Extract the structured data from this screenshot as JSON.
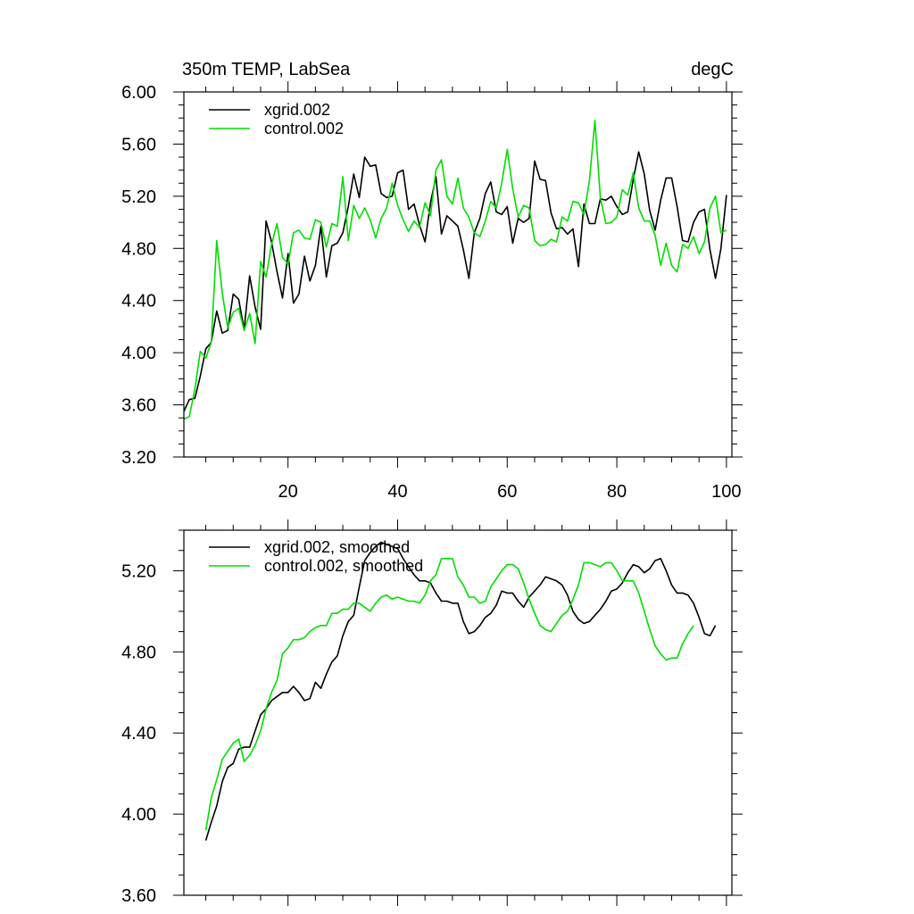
{
  "colors": {
    "xgrid": "#000000",
    "control": "#00dd00",
    "axis": "#000000",
    "background": "#ffffff"
  },
  "chart_data": [
    {
      "type": "line",
      "title": "350m TEMP, LabSea",
      "units": "degC",
      "xlabel": "",
      "ylabel": "",
      "xlim": [
        1,
        101
      ],
      "ylim": [
        3.2,
        6.0
      ],
      "yticks": [
        "6.00",
        "5.60",
        "5.20",
        "4.80",
        "4.40",
        "4.00",
        "3.60",
        "3.20"
      ],
      "xticks": [
        "20",
        "40",
        "60",
        "80",
        "100"
      ],
      "legend_position": "top-left",
      "series": [
        {
          "name": "xgrid.002",
          "color_key": "xgrid",
          "x_start": 1,
          "values": [
            3.55,
            3.64,
            3.65,
            3.82,
            4.03,
            4.08,
            4.32,
            4.15,
            4.17,
            4.45,
            4.41,
            4.18,
            4.59,
            4.35,
            4.18,
            5.01,
            4.85,
            4.62,
            4.42,
            4.76,
            4.38,
            4.45,
            4.74,
            4.55,
            4.67,
            4.97,
            4.58,
            4.82,
            4.84,
            4.92,
            5.12,
            5.37,
            5.19,
            5.5,
            5.43,
            5.44,
            5.22,
            5.19,
            5.2,
            5.38,
            5.4,
            5.1,
            5.14,
            4.98,
            4.85,
            5.15,
            5.35,
            4.91,
            5.05,
            5.01,
            4.97,
            4.79,
            4.57,
            4.92,
            5.03,
            5.22,
            5.31,
            5.08,
            5.06,
            5.12,
            4.84,
            5.03,
            5.0,
            5.03,
            5.47,
            5.33,
            5.32,
            5.07,
            4.95,
            4.96,
            4.91,
            4.95,
            4.66,
            5.14,
            4.99,
            4.99,
            5.18,
            5.17,
            5.2,
            5.12,
            5.06,
            5.08,
            5.33,
            5.54,
            5.37,
            5.09,
            4.94,
            5.17,
            5.34,
            5.34,
            5.12,
            4.86,
            4.85,
            5.0,
            5.08,
            5.1,
            4.79,
            4.57,
            4.8,
            5.21
          ]
        },
        {
          "name": "control.002",
          "color_key": "control",
          "x_start": 1,
          "values": [
            3.49,
            3.51,
            3.72,
            4.01,
            3.96,
            4.08,
            4.86,
            4.46,
            4.19,
            4.31,
            4.34,
            4.17,
            4.3,
            4.07,
            4.7,
            4.58,
            4.83,
            4.99,
            4.73,
            4.68,
            4.92,
            4.94,
            4.88,
            4.87,
            5.02,
            5.0,
            4.81,
            4.99,
            4.97,
            5.35,
            4.86,
            5.13,
            5.03,
            5.11,
            5.02,
            4.88,
            5.03,
            5.11,
            5.3,
            5.13,
            5.02,
            4.93,
            5.01,
            4.96,
            5.15,
            5.05,
            5.4,
            5.48,
            5.2,
            5.14,
            5.34,
            5.11,
            5.04,
            4.92,
            4.89,
            5.01,
            5.16,
            5.11,
            5.3,
            5.56,
            5.26,
            5.04,
            5.13,
            5.11,
            4.86,
            4.82,
            4.83,
            4.87,
            4.85,
            5.04,
            5.01,
            5.16,
            5.15,
            5.06,
            5.32,
            5.78,
            5.19,
            4.99,
            5.0,
            5.04,
            5.25,
            5.21,
            5.38,
            5.11,
            5.01,
            5.01,
            4.9,
            4.67,
            4.84,
            4.67,
            4.62,
            4.83,
            4.8,
            4.89,
            4.76,
            4.85,
            5.11,
            5.2,
            4.92,
            4.94
          ]
        }
      ]
    },
    {
      "type": "line",
      "title": "",
      "xlabel": "",
      "ylabel": "",
      "xlim": [
        1,
        101
      ],
      "ylim": [
        3.6,
        5.4
      ],
      "yticks": [
        "5.20",
        "4.80",
        "4.40",
        "4.00",
        "3.60"
      ],
      "legend_position": "top-left",
      "series": [
        {
          "name": "xgrid.002, smoothed",
          "color_key": "xgrid",
          "x_start": 5,
          "values": [
            3.87,
            3.96,
            4.04,
            4.16,
            4.23,
            4.25,
            4.32,
            4.33,
            4.33,
            4.41,
            4.49,
            4.52,
            4.56,
            4.58,
            4.6,
            4.6,
            4.63,
            4.6,
            4.56,
            4.57,
            4.65,
            4.62,
            4.69,
            4.75,
            4.78,
            4.88,
            4.95,
            4.98,
            5.12,
            5.25,
            5.29,
            5.32,
            5.34,
            5.33,
            5.32,
            5.31,
            5.26,
            5.22,
            5.18,
            5.15,
            5.15,
            5.14,
            5.09,
            5.05,
            5.05,
            5.04,
            5.04,
            4.95,
            4.89,
            4.9,
            4.93,
            4.97,
            4.99,
            5.03,
            5.1,
            5.09,
            5.09,
            5.05,
            5.02,
            5.07,
            5.1,
            5.13,
            5.17,
            5.16,
            5.15,
            5.13,
            5.08,
            5.0,
            4.96,
            4.94,
            4.95,
            4.98,
            5.01,
            5.05,
            5.1,
            5.11,
            5.14,
            5.19,
            5.23,
            5.22,
            5.19,
            5.21,
            5.25,
            5.26,
            5.2,
            5.13,
            5.09,
            5.09,
            5.08,
            5.04,
            4.97,
            4.89,
            4.88,
            4.93
          ]
        },
        {
          "name": "control.002, smoothed",
          "color_key": "control",
          "x_start": 5,
          "values": [
            3.92,
            4.08,
            4.17,
            4.27,
            4.31,
            4.35,
            4.37,
            4.26,
            4.29,
            4.34,
            4.41,
            4.52,
            4.6,
            4.66,
            4.79,
            4.82,
            4.86,
            4.86,
            4.87,
            4.9,
            4.92,
            4.93,
            4.93,
            4.99,
            4.99,
            5.01,
            5.01,
            5.04,
            5.04,
            5.02,
            5.0,
            5.04,
            5.07,
            5.08,
            5.06,
            5.07,
            5.06,
            5.05,
            5.05,
            5.04,
            5.08,
            5.15,
            5.18,
            5.26,
            5.26,
            5.26,
            5.17,
            5.13,
            5.07,
            5.07,
            5.04,
            5.05,
            5.12,
            5.16,
            5.2,
            5.23,
            5.23,
            5.21,
            5.14,
            5.06,
            4.99,
            4.93,
            4.91,
            4.9,
            4.94,
            4.98,
            5.0,
            5.06,
            5.13,
            5.24,
            5.24,
            5.23,
            5.22,
            5.24,
            5.24,
            5.2,
            5.15,
            5.15,
            5.15,
            5.09,
            5.0,
            4.91,
            4.83,
            4.79,
            4.76,
            4.77,
            4.77,
            4.84,
            4.89,
            4.93
          ]
        }
      ]
    }
  ]
}
